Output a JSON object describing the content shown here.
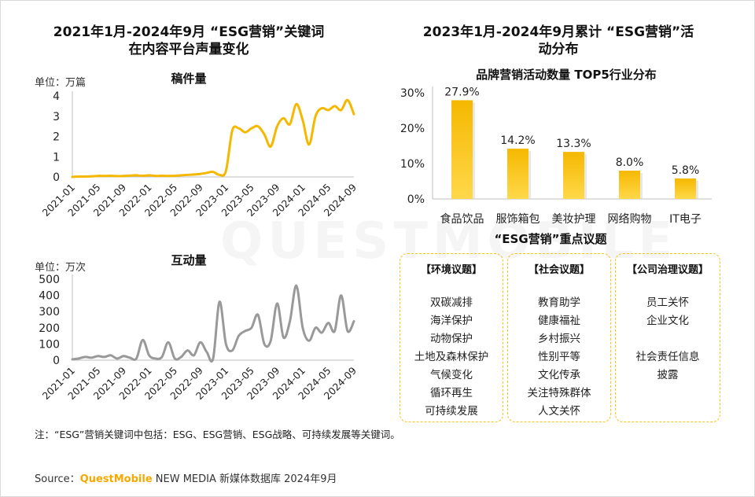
{
  "left_title": {
    "line1": "2021年1月-2024年9月 “ESG营销”关键词",
    "line2": "在内容平台声量变化"
  },
  "right_title": {
    "line1": "2023年1月-2024年9月累计 “ESG营销”活",
    "line2": "动分布"
  },
  "watermark": "QUESTMOBILE",
  "note": "注：“ESG”营销关键词中包括：ESG、ESG营销、ESG战略、可持续发展等关键词。",
  "source": {
    "label": "Source：",
    "brand": "QuestMobile",
    "rest": " NEW MEDIA 新媒体数据库 2024年9月"
  },
  "issues": {
    "title": "“ESG营销”重点议题",
    "groups": [
      {
        "header": "【环境议题】",
        "items": [
          "双碳减排",
          "海洋保护",
          "动物保护",
          "土地及森林保护",
          "气候变化",
          "循环再生",
          "可持续发展"
        ]
      },
      {
        "header": "【社会议题】",
        "items": [
          "教育助学",
          "健康福祉",
          "乡村振兴",
          "性别平等",
          "文化传承",
          "关注特殊群体",
          "人文关怀"
        ]
      },
      {
        "header": "【公司治理议题】",
        "items": [
          "员工关怀",
          "企业文化",
          "",
          "社会责任信息",
          "披露"
        ]
      }
    ]
  },
  "colors": {
    "accent": "#f5b800",
    "accent_light": "#ffd84a",
    "gray_line": "#999999",
    "box_border": "#f5c518"
  },
  "chart_data": [
    {
      "type": "line",
      "title": "稿件量",
      "unit": "单位：万篇",
      "ylim": [
        0,
        4
      ],
      "yticks": [
        0,
        1,
        2,
        3,
        4
      ],
      "tick_labels": [
        "2021-01",
        "2021-05",
        "2021-09",
        "2022-01",
        "2022-05",
        "2022-09",
        "2023-01",
        "2023-05",
        "2023-09",
        "2024-01",
        "2024-05",
        "2024-09"
      ],
      "color": "#f5b800",
      "x": [
        "2021-01",
        "2021-02",
        "2021-03",
        "2021-04",
        "2021-05",
        "2021-06",
        "2021-07",
        "2021-08",
        "2021-09",
        "2021-10",
        "2021-11",
        "2021-12",
        "2022-01",
        "2022-02",
        "2022-03",
        "2022-04",
        "2022-05",
        "2022-06",
        "2022-07",
        "2022-08",
        "2022-09",
        "2022-10",
        "2022-11",
        "2022-12",
        "2023-01",
        "2023-02",
        "2023-03",
        "2023-04",
        "2023-05",
        "2023-06",
        "2023-07",
        "2023-08",
        "2023-09",
        "2023-10",
        "2023-11",
        "2023-12",
        "2024-01",
        "2024-02",
        "2024-03",
        "2024-04",
        "2024-05",
        "2024-06",
        "2024-07",
        "2024-08",
        "2024-09"
      ],
      "values": [
        0.0,
        0.02,
        0.02,
        0.03,
        0.05,
        0.05,
        0.06,
        0.04,
        0.05,
        0.07,
        0.08,
        0.06,
        0.08,
        0.05,
        0.06,
        0.05,
        0.06,
        0.08,
        0.1,
        0.12,
        0.15,
        0.2,
        0.25,
        0.1,
        0.3,
        2.3,
        2.4,
        2.2,
        2.4,
        2.5,
        2.1,
        1.5,
        2.5,
        2.9,
        2.6,
        3.6,
        2.8,
        1.6,
        3.0,
        3.4,
        3.3,
        3.5,
        3.3,
        3.8,
        3.1
      ]
    },
    {
      "type": "line",
      "title": "互动量",
      "unit": "单位：万次",
      "ylim": [
        0,
        500
      ],
      "yticks": [
        0,
        100,
        200,
        300,
        400,
        500
      ],
      "tick_labels": [
        "2021-01",
        "2021-05",
        "2021-09",
        "2022-01",
        "2022-05",
        "2022-09",
        "2023-01",
        "2023-05",
        "2023-09",
        "2024-01",
        "2024-05",
        "2024-09"
      ],
      "color": "#999999",
      "x": [
        "2021-01",
        "2021-02",
        "2021-03",
        "2021-04",
        "2021-05",
        "2021-06",
        "2021-07",
        "2021-08",
        "2021-09",
        "2021-10",
        "2021-11",
        "2021-12",
        "2022-01",
        "2022-02",
        "2022-03",
        "2022-04",
        "2022-05",
        "2022-06",
        "2022-07",
        "2022-08",
        "2022-09",
        "2022-10",
        "2022-11",
        "2022-12",
        "2023-01",
        "2023-02",
        "2023-03",
        "2023-04",
        "2023-05",
        "2023-06",
        "2023-07",
        "2023-08",
        "2023-09",
        "2023-10",
        "2023-11",
        "2023-12",
        "2024-01",
        "2024-02",
        "2024-03",
        "2024-04",
        "2024-05",
        "2024-06",
        "2024-07",
        "2024-08",
        "2024-09"
      ],
      "values": [
        5,
        10,
        20,
        15,
        25,
        20,
        30,
        10,
        25,
        15,
        10,
        125,
        30,
        10,
        20,
        110,
        10,
        20,
        60,
        30,
        110,
        50,
        10,
        360,
        100,
        60,
        150,
        180,
        200,
        280,
        100,
        120,
        350,
        140,
        240,
        460,
        200,
        120,
        200,
        170,
        230,
        180,
        400,
        180,
        240
      ]
    },
    {
      "type": "bar",
      "title": "品牌营销活动数量 TOP5行业分布",
      "categories": [
        "食品饮品",
        "服饰箱包",
        "美妆护理",
        "网络购物",
        "IT电子"
      ],
      "values": [
        27.9,
        14.2,
        13.3,
        8.0,
        5.8
      ],
      "data_labels": [
        "27.9%",
        "14.2%",
        "13.3%",
        "8.0%",
        "5.8%"
      ],
      "ylim": [
        0,
        30
      ],
      "yticks": [
        0,
        10,
        20,
        30
      ],
      "ytick_labels": [
        "0%",
        "10%",
        "20%",
        "30%"
      ],
      "color": "#f5b800"
    }
  ]
}
